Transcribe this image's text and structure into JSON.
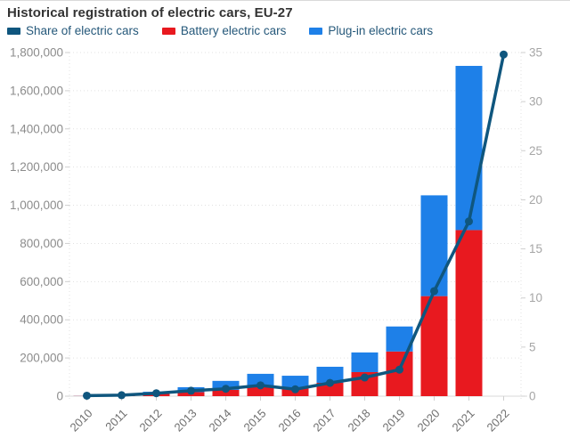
{
  "title": "Historical registration of electric cars, EU-27",
  "legend": {
    "items": [
      {
        "label": "Share of electric cars",
        "color": "#0f567e",
        "series": "share"
      },
      {
        "label": "Battery electric cars",
        "color": "#e8191f",
        "series": "battery"
      },
      {
        "label": "Plug-in electric cars",
        "color": "#1e80e8",
        "series": "plugin"
      }
    ]
  },
  "colors": {
    "share_line": "#0f567e",
    "battery_bar": "#e8191f",
    "plugin_bar": "#1e80e8",
    "grid": "#e1e1e1",
    "axis_line": "#d9d9d9",
    "tick": "#cfcfcf",
    "left_tick_label": "#8c8c8c",
    "right_tick_label": "#a6a6a6",
    "x_tick_label": "#6e6e6e",
    "title_text": "#333333",
    "legend_text": "#25587a"
  },
  "chart_data": {
    "type": "bar",
    "subtype": "stacked-bars-with-line-on-secondary-axis",
    "title": "Historical registration of electric cars, EU-27",
    "categories": [
      "2010",
      "2011",
      "2012",
      "2013",
      "2014",
      "2015",
      "2016",
      "2017",
      "2018",
      "2019",
      "2020",
      "2021",
      "2022"
    ],
    "series": [
      {
        "name": "Battery electric cars",
        "type": "bar",
        "stack": "ev",
        "color": "#e8191f",
        "values": [
          1000,
          8000,
          14000,
          21000,
          33000,
          51000,
          40000,
          70000,
          126000,
          234000,
          524000,
          870000,
          null
        ]
      },
      {
        "name": "Plug-in electric cars",
        "type": "bar",
        "stack": "ev",
        "color": "#1e80e8",
        "values": [
          500,
          2000,
          9000,
          26000,
          47000,
          66000,
          67000,
          84000,
          103000,
          131000,
          528000,
          860000,
          null
        ]
      },
      {
        "name": "Share of electric cars",
        "type": "line",
        "axis": "right",
        "color": "#0f567e",
        "values": [
          0.05,
          0.1,
          0.3,
          0.55,
          0.75,
          1.1,
          0.7,
          1.35,
          1.9,
          2.7,
          10.7,
          17.8,
          34.8
        ]
      }
    ],
    "left_axis": {
      "min": 0,
      "max": 1800000,
      "step": 200000,
      "tick_labels": [
        "0",
        "200,000",
        "400,000",
        "600,000",
        "800,000",
        "1,000,000",
        "1,200,000",
        "1,400,000",
        "1,600,000",
        "1,800,000"
      ]
    },
    "right_axis": {
      "min": 0,
      "max": 35,
      "step": 5,
      "tick_labels": [
        "0",
        "5",
        "10",
        "15",
        "20",
        "25",
        "30",
        "35"
      ]
    },
    "grid": true,
    "legend_position": "top",
    "xlabel": "",
    "ylabel": ""
  }
}
